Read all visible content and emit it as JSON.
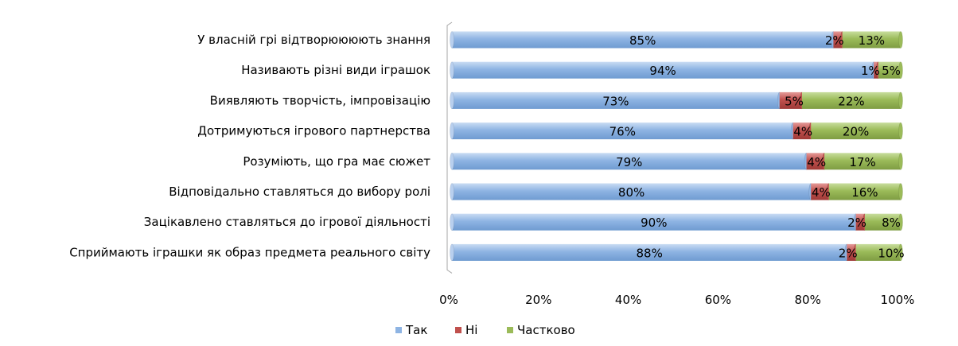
{
  "chart_data": {
    "type": "bar",
    "orientation": "horizontal",
    "stacked": "percent",
    "categories": [
      "У власній грі відтворюююють знання",
      "Називають різні види іграшок",
      "Виявляють творчість, імпровізацію",
      "Дотримуються ігрового партнерства",
      "Розуміють, що гра має сюжет",
      "Відповідально ставляться до вибору ролі",
      "Зацікавлено ставляться до ігрової діяльності",
      "Сприймають іграшки як образ предмета реального світу"
    ],
    "series": [
      {
        "name": "Так",
        "color": "#8EB4E3",
        "values": [
          85,
          94,
          73,
          76,
          79,
          80,
          90,
          88
        ],
        "labels": [
          "85%",
          "94%",
          "73%",
          "76%",
          "79%",
          "80%",
          "90%",
          "88%"
        ]
      },
      {
        "name": "Ні",
        "color": "#C0504D",
        "values": [
          2,
          1,
          5,
          4,
          4,
          4,
          2,
          2
        ],
        "labels": [
          "2%",
          "1%",
          "5%",
          "4%",
          "4%",
          "4%",
          "2%",
          "2%"
        ]
      },
      {
        "name": "Частково",
        "color": "#9BBB59",
        "values": [
          13,
          5,
          22,
          20,
          17,
          16,
          8,
          10
        ],
        "labels": [
          "13%",
          "5%",
          "22%",
          "20%",
          "17%",
          "16%",
          "8%",
          "10%"
        ]
      }
    ],
    "xlim": [
      0,
      100
    ],
    "x_ticks": [
      "0%",
      "20%",
      "40%",
      "60%",
      "80%",
      "100%"
    ],
    "legend_position": "bottom",
    "grid": false,
    "title": "",
    "xlabel": "",
    "ylabel": ""
  }
}
